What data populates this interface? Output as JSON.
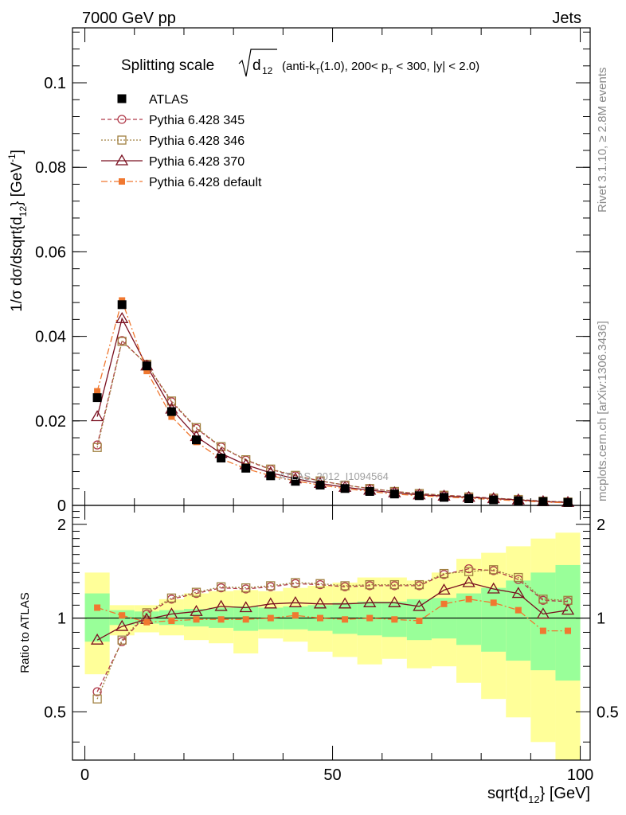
{
  "header": {
    "left": "7000 GeV pp",
    "right": "Jets"
  },
  "side": {
    "rivet": "Rivet 3.1.10, ≥ 2.8M events",
    "mcplots": "mcplots.cern.ch [arXiv:1306.3436]"
  },
  "watermark": "ATLAS_2012_I1094564",
  "chart_data": [
    {
      "type": "scatter",
      "title": "Splitting scale √d₁₂ (anti-k_T(1.0), 200< p_T < 300, |y| < 2.0)",
      "title_parts": {
        "main": "Splitting scale",
        "root_sub": "d",
        "root_subsub": "12",
        "rest_a": "(anti-k",
        "rest_sub1": "T",
        "rest_b": "(1.0), 200< p",
        "rest_sub2": "T",
        "rest_c": " < 300, |y| < 2.0)"
      },
      "ylabel": "1/σ dσ/dsqrt{d_12} [GeV^-1]",
      "ylabel_parts": {
        "a": "1/σ dσ/dsqrt{d",
        "sub": "12",
        "b": "} [GeV",
        "sup": "-1",
        "c": "]"
      },
      "xlim": [
        -2.5,
        102
      ],
      "ylim": [
        0,
        0.113
      ],
      "yticks": [
        0,
        0.02,
        0.04,
        0.06,
        0.08,
        0.1
      ],
      "ytick_labels": [
        "0",
        "0.02",
        "0.04",
        "0.06",
        "0.08",
        "0.1"
      ],
      "legend_placement": "top-left",
      "x": [
        2.5,
        7.5,
        12.5,
        17.5,
        22.5,
        27.5,
        32.5,
        37.5,
        42.5,
        47.5,
        52.5,
        57.5,
        62.5,
        67.5,
        72.5,
        77.5,
        82.5,
        87.5,
        92.5,
        97.5
      ],
      "series": [
        {
          "name": "ATLAS",
          "color": "#000000",
          "marker": "filled-square",
          "line": "none",
          "values": [
            0.0255,
            0.0475,
            0.033,
            0.0222,
            0.0155,
            0.0112,
            0.0088,
            0.007,
            0.0057,
            0.0048,
            0.004,
            0.0033,
            0.0027,
            0.0023,
            0.0019,
            0.0016,
            0.0013,
            0.0011,
            0.0009,
            0.0007
          ]
        },
        {
          "name": "Pythia 6.428 345",
          "color": "#b03a4a",
          "marker": "open-circle",
          "line": "dashed",
          "values": [
            0.0143,
            0.039,
            0.0333,
            0.0245,
            0.0182,
            0.0138,
            0.0107,
            0.0085,
            0.007,
            0.0058,
            0.0048,
            0.004,
            0.0033,
            0.0028,
            0.0024,
            0.0021,
            0.0017,
            0.0014,
            0.001,
            0.0008
          ]
        },
        {
          "name": "Pythia 6.428 346",
          "color": "#a08040",
          "marker": "open-square",
          "line": "dotted",
          "values": [
            0.0137,
            0.0388,
            0.0334,
            0.0247,
            0.0184,
            0.0139,
            0.0108,
            0.0086,
            0.0071,
            0.0058,
            0.0048,
            0.004,
            0.0033,
            0.0028,
            0.0024,
            0.002,
            0.0017,
            0.0014,
            0.001,
            0.0008
          ]
        },
        {
          "name": "Pythia 6.428 370",
          "color": "#7a1020",
          "marker": "open-triangle",
          "line": "solid",
          "values": [
            0.021,
            0.0442,
            0.033,
            0.0228,
            0.0163,
            0.0123,
            0.0096,
            0.0077,
            0.0063,
            0.0052,
            0.0043,
            0.0036,
            0.003,
            0.0025,
            0.0022,
            0.0019,
            0.0016,
            0.0013,
            0.0009,
            0.0007
          ]
        },
        {
          "name": "Pythia 6.428 default",
          "color": "#f07830",
          "marker": "filled-square-small",
          "line": "dashdot",
          "values": [
            0.027,
            0.0485,
            0.0318,
            0.021,
            0.015,
            0.011,
            0.0087,
            0.007,
            0.0058,
            0.0048,
            0.004,
            0.0033,
            0.0027,
            0.0023,
            0.002,
            0.0017,
            0.0014,
            0.0011,
            0.0008,
            0.0006
          ]
        }
      ]
    },
    {
      "type": "scatter",
      "xlabel": "sqrt{d_12} [GeV]",
      "xlabel_parts": {
        "a": "sqrt{d",
        "sub": "12",
        "b": "} [GeV]"
      },
      "ylabel": "Ratio to ATLAS",
      "xlim": [
        -2.5,
        102
      ],
      "ylim": [
        0.35,
        2.3
      ],
      "yticks": [
        0.5,
        1,
        2
      ],
      "ytick_labels": [
        "0.5",
        "1",
        "2"
      ],
      "xticks": [
        0,
        50,
        100
      ],
      "xtick_labels": [
        "0",
        "50",
        "100"
      ],
      "x": [
        2.5,
        7.5,
        12.5,
        17.5,
        22.5,
        27.5,
        32.5,
        37.5,
        42.5,
        47.5,
        52.5,
        57.5,
        62.5,
        67.5,
        72.5,
        77.5,
        82.5,
        87.5,
        92.5,
        97.5
      ],
      "bands": {
        "bin_edges": [
          0,
          5,
          10,
          15,
          20,
          25,
          30,
          35,
          40,
          45,
          50,
          55,
          60,
          65,
          70,
          75,
          80,
          85,
          90,
          95,
          100
        ],
        "inner_color": "#99ff99",
        "outer_color": "#ffff99",
        "inner_low": [
          0.84,
          0.95,
          0.96,
          0.95,
          0.94,
          0.93,
          0.91,
          0.92,
          0.92,
          0.91,
          0.89,
          0.88,
          0.87,
          0.85,
          0.86,
          0.82,
          0.78,
          0.73,
          0.68,
          0.63
        ],
        "inner_high": [
          1.2,
          1.06,
          1.05,
          1.06,
          1.07,
          1.08,
          1.09,
          1.08,
          1.09,
          1.1,
          1.12,
          1.13,
          1.13,
          1.15,
          1.16,
          1.2,
          1.25,
          1.32,
          1.4,
          1.48
        ],
        "outer_low": [
          0.66,
          0.88,
          0.9,
          0.88,
          0.85,
          0.83,
          0.77,
          0.86,
          0.84,
          0.78,
          0.75,
          0.71,
          0.74,
          0.69,
          0.7,
          0.62,
          0.55,
          0.48,
          0.4,
          0.35
        ],
        "outer_high": [
          1.4,
          1.1,
          1.1,
          1.15,
          1.2,
          1.22,
          1.23,
          1.22,
          1.25,
          1.27,
          1.3,
          1.35,
          1.35,
          1.32,
          1.4,
          1.55,
          1.62,
          1.7,
          1.8,
          1.88
        ]
      },
      "series": [
        {
          "name": "Pythia 6.428 345",
          "color": "#b03a4a",
          "marker": "open-circle",
          "line": "dashed",
          "values": [
            0.58,
            0.84,
            1.03,
            1.15,
            1.2,
            1.25,
            1.24,
            1.26,
            1.29,
            1.28,
            1.26,
            1.27,
            1.27,
            1.27,
            1.38,
            1.44,
            1.42,
            1.33,
            1.14,
            1.13
          ]
        },
        {
          "name": "Pythia 6.428 346",
          "color": "#a08040",
          "marker": "open-square",
          "line": "dotted",
          "values": [
            0.55,
            0.85,
            1.04,
            1.16,
            1.21,
            1.26,
            1.25,
            1.27,
            1.3,
            1.29,
            1.27,
            1.28,
            1.28,
            1.28,
            1.39,
            1.41,
            1.43,
            1.35,
            1.15,
            1.14
          ]
        },
        {
          "name": "Pythia 6.428 370",
          "color": "#7a1020",
          "marker": "open-triangle",
          "line": "solid",
          "values": [
            0.85,
            0.94,
            0.99,
            1.03,
            1.05,
            1.09,
            1.08,
            1.11,
            1.12,
            1.11,
            1.11,
            1.12,
            1.12,
            1.09,
            1.23,
            1.3,
            1.24,
            1.2,
            1.03,
            1.06
          ]
        },
        {
          "name": "Pythia 6.428 default",
          "color": "#f07830",
          "marker": "filled-square-small",
          "line": "dashdot",
          "values": [
            1.08,
            1.02,
            0.97,
            0.98,
            0.99,
            0.99,
            0.99,
            1.0,
            1.02,
            1.0,
            0.99,
            1.0,
            0.99,
            0.98,
            1.11,
            1.15,
            1.12,
            1.06,
            0.91,
            0.91
          ]
        }
      ]
    }
  ]
}
